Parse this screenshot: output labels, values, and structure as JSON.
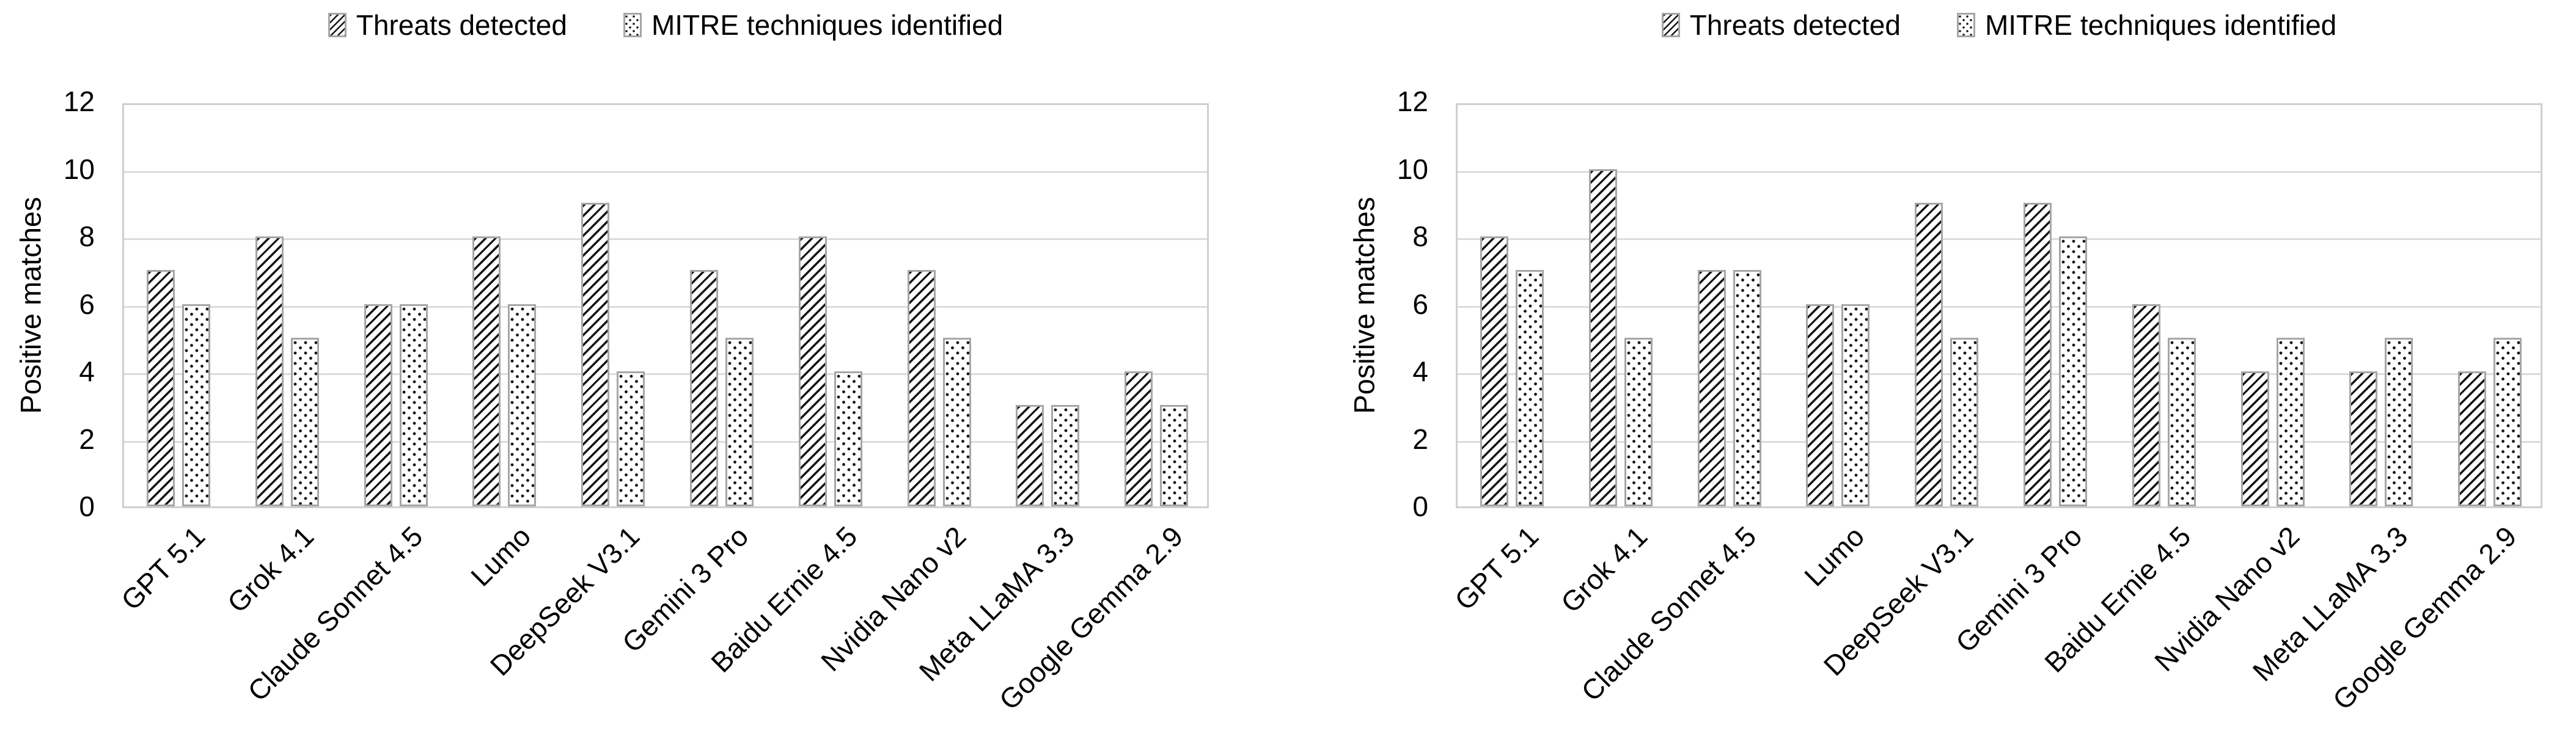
{
  "figure": {
    "background": "#ffffff",
    "text_color": "#000000",
    "gridline_color": "#d9d9d9",
    "bar_border_color": "#a6a6a6",
    "bar_fill_color": "#ffffff",
    "pattern_color": "#141414"
  },
  "chart_data": [
    {
      "type": "bar",
      "title": "",
      "xlabel": "",
      "ylabel": "Positive matches",
      "ylim": [
        0,
        12
      ],
      "yticks": [
        0,
        2,
        4,
        6,
        8,
        10,
        12
      ],
      "grid": true,
      "legend_position": "top",
      "bar_patterns": [
        "diagonal-hatch",
        "dots"
      ],
      "categories": [
        "GPT 5.1",
        "Grok 4.1",
        "Claude Sonnet 4.5",
        "Lumo",
        "DeepSeek V3.1",
        "Gemini 3 Pro",
        "Baidu Ernie 4.5",
        "Nvidia Nano v2",
        "Meta LLaMA 3.3",
        "Google Gemma 2.9"
      ],
      "series": [
        {
          "name": "Threats detected",
          "values": [
            7,
            8,
            6,
            8,
            9,
            7,
            8,
            7,
            3,
            4
          ]
        },
        {
          "name": "MITRE techniques identified",
          "values": [
            6,
            5,
            6,
            6,
            4,
            5,
            4,
            5,
            3,
            3
          ]
        }
      ]
    },
    {
      "type": "bar",
      "title": "",
      "xlabel": "",
      "ylabel": "Positive matches",
      "ylim": [
        0,
        12
      ],
      "yticks": [
        0,
        2,
        4,
        6,
        8,
        10,
        12
      ],
      "grid": true,
      "legend_position": "top",
      "bar_patterns": [
        "diagonal-hatch",
        "dots"
      ],
      "categories": [
        "GPT 5.1",
        "Grok 4.1",
        "Claude Sonnet 4.5",
        "Lumo",
        "DeepSeek V3.1",
        "Gemini 3 Pro",
        "Baidu Ernie 4.5",
        "Nvidia Nano v2",
        "Meta LLaMA 3.3",
        "Google Gemma 2.9"
      ],
      "series": [
        {
          "name": "Threats detected",
          "values": [
            8,
            10,
            7,
            6,
            9,
            9,
            6,
            4,
            4,
            4
          ]
        },
        {
          "name": "MITRE techniques identified",
          "values": [
            7,
            5,
            7,
            6,
            5,
            8,
            5,
            5,
            5,
            5
          ]
        }
      ]
    }
  ]
}
